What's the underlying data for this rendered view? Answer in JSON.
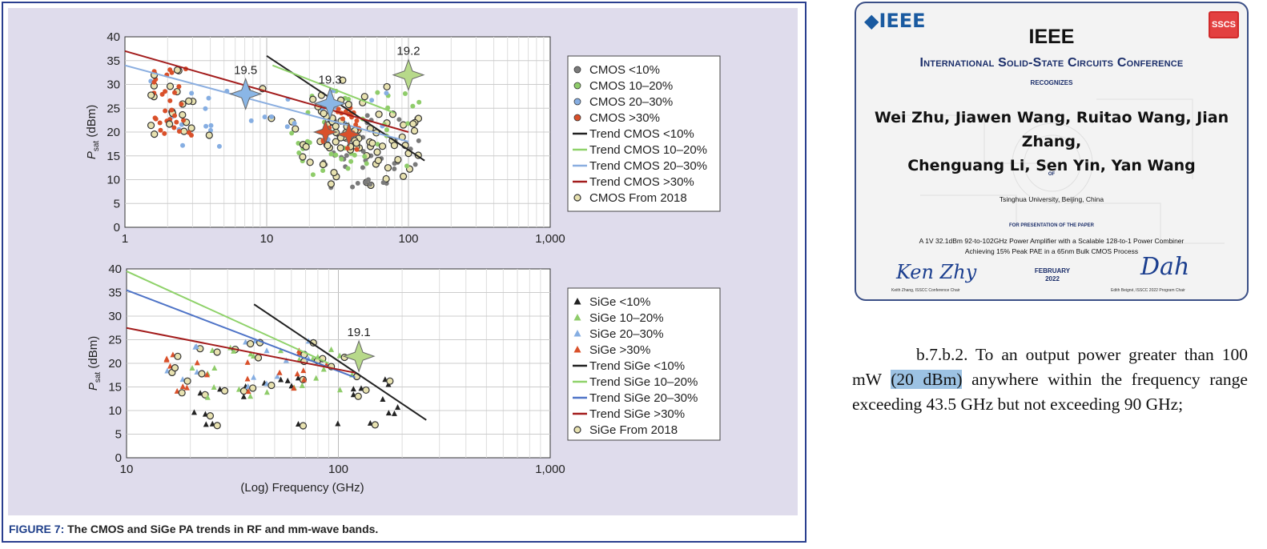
{
  "figure": {
    "caption_label": "FIGURE 7:",
    "caption_text": "The CMOS and SiGe PA trends in RF and mm-wave bands."
  },
  "chart_data": [
    {
      "type": "scatter",
      "title": "",
      "ylabel": "P_sat (dBm)",
      "ylabel_main": "P",
      "ylabel_sub": "sat",
      "ylabel_unit": " (dBm)",
      "xscale": "log",
      "xlim": [
        1,
        1000
      ],
      "ylim": [
        0,
        40
      ],
      "xticks": [
        "1",
        "10",
        "100",
        "1,000"
      ],
      "yticks": [
        "0",
        "5",
        "10",
        "15",
        "20",
        "25",
        "30",
        "35",
        "40"
      ],
      "grid": true,
      "legend_position": "right",
      "legend": [
        {
          "label": "CMOS <10%",
          "kind": "dot",
          "color": "#7a7a7a"
        },
        {
          "label": "CMOS 10–20%",
          "kind": "dot",
          "color": "#8fcc6a"
        },
        {
          "label": "CMOS 20–30%",
          "kind": "dot",
          "color": "#86aee2"
        },
        {
          "label": "CMOS >30%",
          "kind": "dot",
          "color": "#d9502a"
        },
        {
          "label": "Trend CMOS <10%",
          "kind": "line",
          "color": "#222222"
        },
        {
          "label": "Trend CMOS 10–20%",
          "kind": "line",
          "color": "#8fd26a"
        },
        {
          "label": "Trend CMOS 20–30%",
          "kind": "line",
          "color": "#8aaee0"
        },
        {
          "label": "Trend CMOS >30%",
          "kind": "line",
          "color": "#a31c1c"
        },
        {
          "label": "CMOS From 2018",
          "kind": "ring",
          "color": "#e8e2b0"
        }
      ],
      "trends": [
        {
          "name": "Trend CMOS <10%",
          "color": "#222222",
          "points": [
            [
              10,
              36
            ],
            [
              130,
              14
            ]
          ]
        },
        {
          "name": "Trend CMOS 10–20%",
          "color": "#8fd26a",
          "points": [
            [
              11,
              34
            ],
            [
              80,
              24
            ]
          ]
        },
        {
          "name": "Trend CMOS 20–30%",
          "color": "#8aaee0",
          "points": [
            [
              1,
              34
            ],
            [
              100,
              18
            ]
          ]
        },
        {
          "name": "Trend CMOS >30%",
          "color": "#a31c1c",
          "points": [
            [
              1,
              37
            ],
            [
              100,
              20
            ]
          ]
        }
      ],
      "stars": [
        {
          "label": "19.5",
          "x": 7.1,
          "y": 28,
          "color": "#8ab6e6"
        },
        {
          "label": "19.3",
          "x": 28,
          "y": 26,
          "color": "#8ab6e6"
        },
        {
          "label": "19.2",
          "x": 100,
          "y": 32,
          "color": "#b7d98a"
        },
        {
          "label": "",
          "x": 26,
          "y": 20,
          "color": "#d9502a"
        },
        {
          "label": "",
          "x": 38,
          "y": 19.5,
          "color": "#d9502a"
        }
      ],
      "series": [
        {
          "name": "CMOS <10%",
          "color": "#7a7a7a",
          "cluster": [
            [
              25,
              120,
              16,
              8
            ]
          ]
        },
        {
          "name": "CMOS 10–20%",
          "color": "#8fcc6a",
          "cluster": [
            [
              15,
              120,
              20,
              9
            ]
          ]
        },
        {
          "name": "CMOS 20–30%",
          "color": "#86aee2",
          "cluster": [
            [
              1.5,
              80,
              24,
              7
            ]
          ]
        },
        {
          "name": "CMOS >30%",
          "color": "#d9502a",
          "cluster": [
            [
              1.5,
              3,
              26,
              8
            ],
            [
              25,
              45,
              21,
              5
            ]
          ]
        }
      ],
      "point_counts": [
        60,
        70,
        50,
        90
      ]
    },
    {
      "type": "scatter",
      "title": "",
      "ylabel": "P_sat (dBm)",
      "ylabel_main": "P",
      "ylabel_sub": "sat",
      "ylabel_unit": " (dBm)",
      "xlabel": "(Log) Frequency (GHz)",
      "xscale": "log",
      "xlim": [
        10,
        1000
      ],
      "ylim": [
        0,
        40
      ],
      "xticks": [
        "10",
        "100",
        "1,000"
      ],
      "yticks": [
        "0",
        "5",
        "10",
        "15",
        "20",
        "25",
        "30",
        "35",
        "40"
      ],
      "grid": true,
      "legend_position": "right",
      "legend": [
        {
          "label": "SiGe <10%",
          "kind": "tri",
          "color": "#222222"
        },
        {
          "label": "SiGe 10–20%",
          "kind": "tri",
          "color": "#8fcc6a"
        },
        {
          "label": "SiGe 20–30%",
          "kind": "tri",
          "color": "#86aee2"
        },
        {
          "label": "SiGe >30%",
          "kind": "tri",
          "color": "#d9502a"
        },
        {
          "label": "Trend SiGe <10%",
          "kind": "line",
          "color": "#222222"
        },
        {
          "label": "Trend SiGe 10–20%",
          "kind": "line",
          "color": "#8fd26a"
        },
        {
          "label": "Trend SiGe 20–30%",
          "kind": "line",
          "color": "#4f74c7"
        },
        {
          "label": "Trend SiGe >30%",
          "kind": "line",
          "color": "#a31c1c"
        },
        {
          "label": "SiGe From 2018",
          "kind": "ring",
          "color": "#e8e2b0"
        }
      ],
      "trends": [
        {
          "name": "Trend SiGe <10%",
          "color": "#222222",
          "points": [
            [
              40,
              32.5
            ],
            [
              260,
              8
            ]
          ]
        },
        {
          "name": "Trend SiGe 10–20%",
          "color": "#8fd26a",
          "points": [
            [
              10,
              39.5
            ],
            [
              90,
              20
            ]
          ]
        },
        {
          "name": "Trend SiGe 20–30%",
          "color": "#4f74c7",
          "points": [
            [
              10,
              35.5
            ],
            [
              120,
              17
            ]
          ]
        },
        {
          "name": "Trend SiGe >30%",
          "color": "#a31c1c",
          "points": [
            [
              10,
              27.5
            ],
            [
              120,
              18
            ]
          ]
        }
      ],
      "stars": [
        {
          "label": "19.1",
          "x": 125,
          "y": 21.5,
          "color": "#b7d98a"
        }
      ],
      "series": [
        {
          "name": "SiGe <10%",
          "color": "#222222",
          "cluster": [
            [
              20,
              200,
              12,
              5
            ]
          ]
        },
        {
          "name": "SiGe 10–20%",
          "color": "#8fcc6a",
          "cluster": [
            [
              20,
              120,
              18,
              6
            ]
          ]
        },
        {
          "name": "SiGe 20–30%",
          "color": "#86aee2",
          "cluster": [
            [
              15,
              100,
              20,
              5
            ]
          ]
        },
        {
          "name": "SiGe >30%",
          "color": "#d9502a",
          "cluster": [
            [
              15,
              100,
              18,
              5
            ]
          ]
        }
      ],
      "point_counts": [
        25,
        25,
        15,
        20
      ]
    }
  ],
  "certificate": {
    "logo": "◆IEEE",
    "sscs": "SSCS",
    "title": "IEEE",
    "conference": "International Solid-State Circuits Conference",
    "recognizes": "RECOGNIZES",
    "names_line1": "Wei Zhu, Jiawen Wang, Ruitao Wang, Jian Zhang,",
    "names_line2": "Chenguang Li, Sen Yin, Yan Wang",
    "of": "OF",
    "institution": "Tsinghua University, Beijing, China",
    "for_presentation": "FOR PRESENTATION OF THE PAPER",
    "paper_line1": "A 1V 32.1dBm 92-to-102GHz Power Amplifier with a Scalable 128-to-1 Power Combiner",
    "paper_line2": "Achieving 15% Peak PAE in a 65nm Bulk CMOS Process",
    "signature1": "Ken Zhy",
    "signer1": "Keith Zhang, ISSCC Conference Chair",
    "date_month": "FEBRUARY",
    "date_year": "2022",
    "signature2": "Dah",
    "signer2": "Edith Beigné, ISSCC 2022 Program Chair"
  },
  "regulation": {
    "prefix": "b.7.b.2. To an output power greater than 100 mW ",
    "highlight": "(20 dBm)",
    "suffix": " anywhere within the frequency range exceeding 43.5 GHz but not exceeding 90 GHz;"
  }
}
